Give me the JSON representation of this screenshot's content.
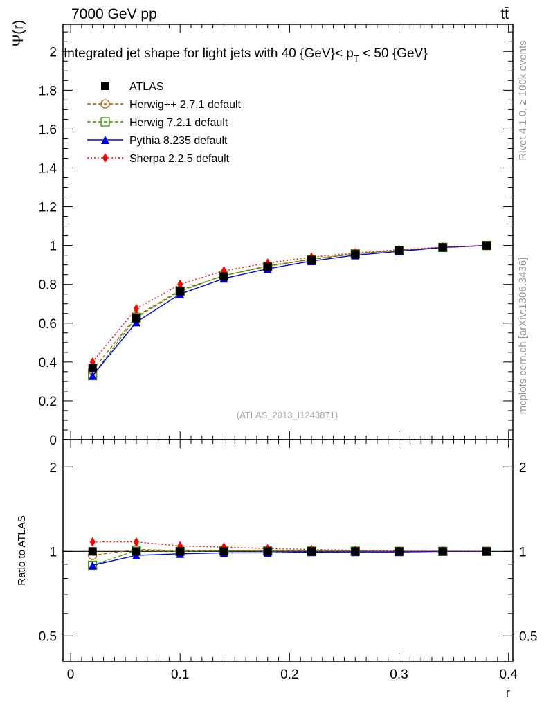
{
  "header": {
    "left": "7000 GeV pp",
    "right": "tt̄"
  },
  "side_labels": {
    "rivet": "Rivet 4.1.0, ≥ 100k events",
    "mcplots": "mcplots.cern.ch [arXiv:1306.3436]"
  },
  "chart_data": {
    "type": "line",
    "title": "Integrated jet shape for light jets with 40 {GeV}< p_T < 50 {GeV}",
    "title_parts": {
      "main": "Integrated jet shape for light jets with 40 {GeV}< p",
      "sub": "T",
      "tail": " < 50 {GeV}"
    },
    "ylabel": "Ψ(r)",
    "xlabel": "r",
    "ratio_ylabel": "Ratio to ATLAS",
    "analysis_id": "(ATLAS_2013_I1243871)",
    "xlim": [
      -0.007,
      0.404
    ],
    "ylim": [
      0,
      2.14
    ],
    "ratio_ylim": [
      0.406,
      2.5
    ],
    "ratio_scale": "log",
    "x_ticks": [
      "0",
      "0.1",
      "0.2",
      "0.3",
      "0.4"
    ],
    "y_ticks": [
      "0",
      "0.2",
      "0.4",
      "0.6",
      "0.8",
      "1",
      "1.2",
      "1.4",
      "1.6",
      "1.8",
      "2"
    ],
    "ratio_ticks": [
      "0.5",
      "1",
      "2"
    ],
    "legend_position": "top-left",
    "x": [
      0.02,
      0.06,
      0.1,
      0.14,
      0.18,
      0.22,
      0.26,
      0.3,
      0.34,
      0.38
    ],
    "series": [
      {
        "name": "ATLAS",
        "color": "#000000",
        "marker": "square-filled",
        "line": "none",
        "values": [
          0.37,
          0.625,
          0.765,
          0.84,
          0.89,
          0.925,
          0.955,
          0.975,
          0.99,
          1.0
        ]
      },
      {
        "name": "Herwig++ 2.7.1 default",
        "color": "#b85a00",
        "marker": "circle-open",
        "line": "dashed",
        "values": [
          0.358,
          0.635,
          0.77,
          0.845,
          0.895,
          0.93,
          0.958,
          0.976,
          0.99,
          1.0
        ]
      },
      {
        "name": "Herwig 7.2.1 default",
        "color": "#3a9a00",
        "marker": "square-open",
        "line": "dashed",
        "values": [
          0.33,
          0.63,
          0.765,
          0.845,
          0.893,
          0.928,
          0.957,
          0.975,
          0.99,
          1.0
        ]
      },
      {
        "name": "Pythia 8.235 default",
        "color": "#0000e6",
        "marker": "triangle-filled",
        "line": "solid",
        "values": [
          0.33,
          0.605,
          0.75,
          0.83,
          0.88,
          0.92,
          0.95,
          0.97,
          0.99,
          1.0
        ]
      },
      {
        "name": "Sherpa 2.2.5 default",
        "color": "#ff0000",
        "marker": "diamond-filled",
        "line": "dotted",
        "values": [
          0.4,
          0.675,
          0.8,
          0.87,
          0.91,
          0.94,
          0.962,
          0.978,
          0.992,
          1.0
        ]
      }
    ]
  }
}
